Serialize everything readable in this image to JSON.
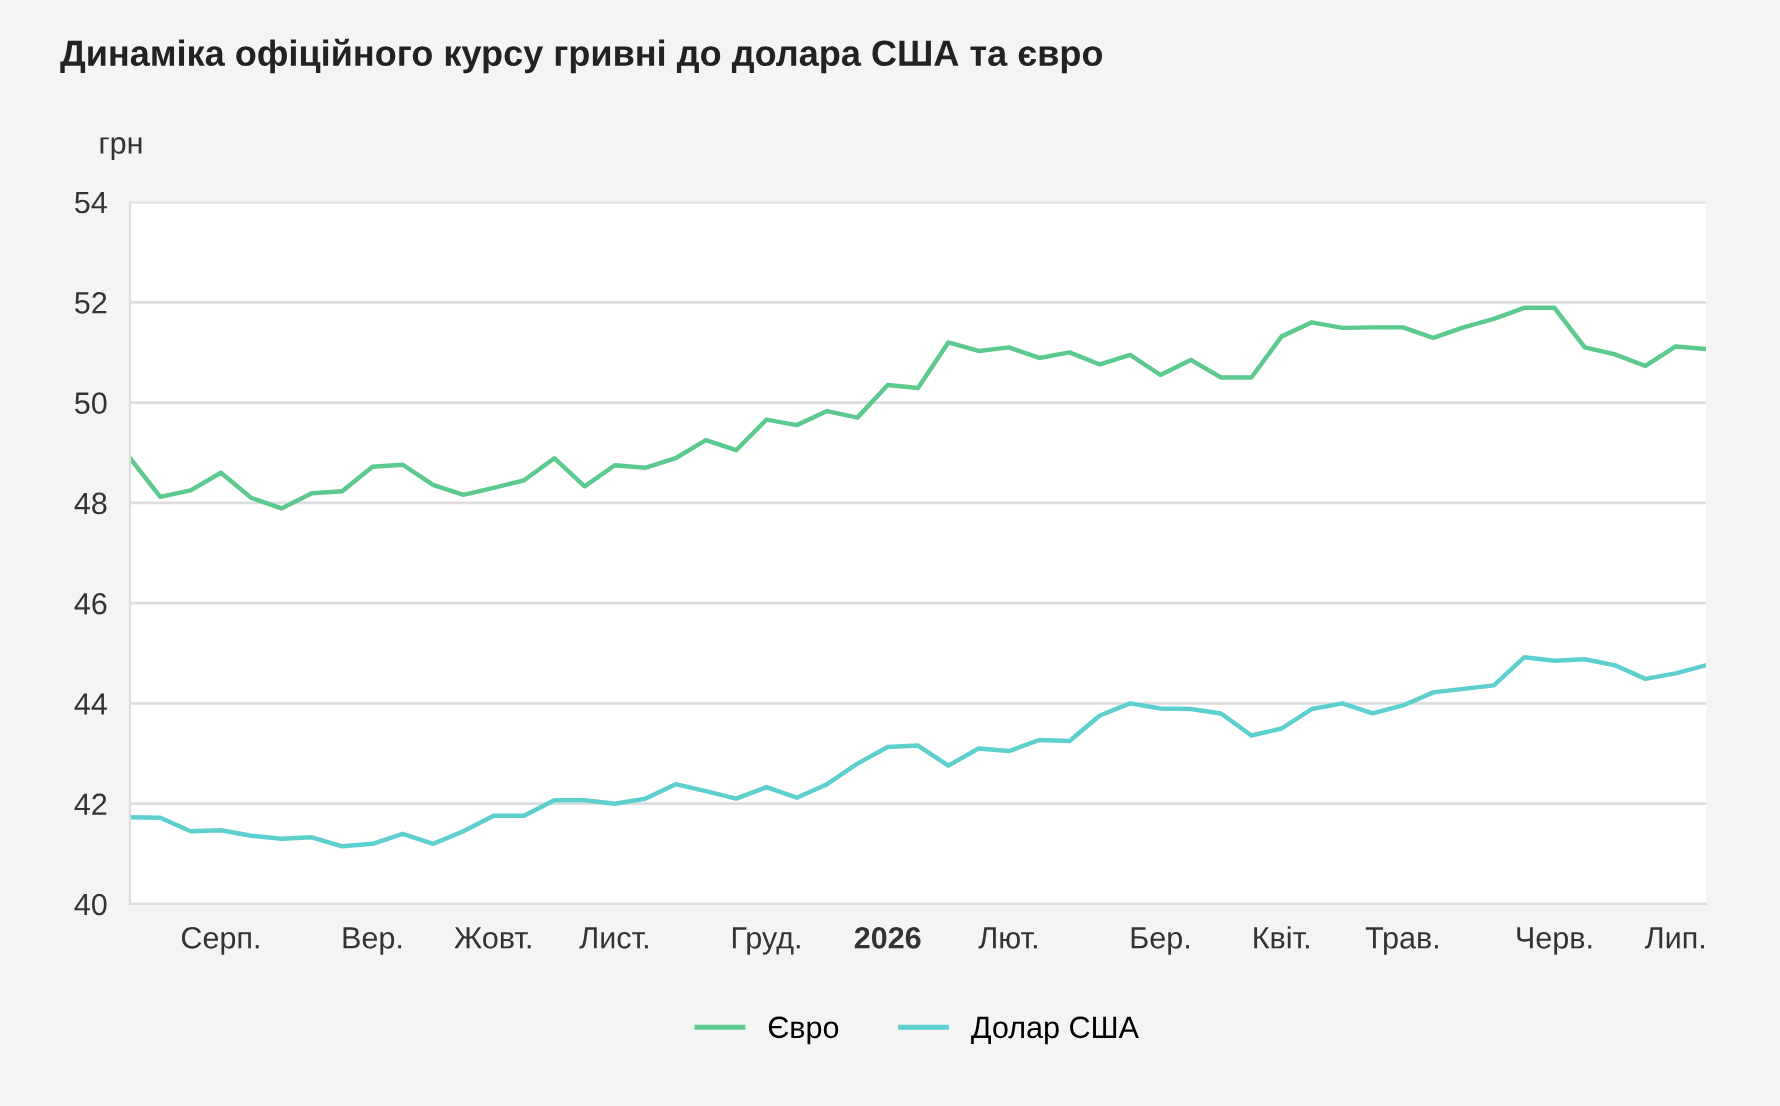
{
  "chart_data": {
    "type": "line",
    "title": "Динаміка офіційного курсу гривні до долара США та євро",
    "ylabel": "грн",
    "ylim": [
      40,
      54
    ],
    "yticks": [
      40,
      42,
      44,
      46,
      48,
      50,
      52,
      54
    ],
    "categories": [
      null,
      null,
      null,
      "Серп.",
      null,
      null,
      null,
      null,
      "Вер.",
      null,
      null,
      null,
      "Жовт.",
      null,
      null,
      null,
      "Лист.",
      null,
      null,
      null,
      null,
      "Груд.",
      null,
      null,
      null,
      "2026",
      null,
      null,
      null,
      "Лют.",
      null,
      null,
      null,
      null,
      "Бер.",
      null,
      null,
      null,
      "Квіт.",
      null,
      null,
      null,
      "Трав.",
      null,
      null,
      null,
      null,
      "Черв.",
      null,
      null,
      null,
      "Лип.",
      null
    ],
    "grid": "y",
    "legend": "bottom",
    "marker": "none",
    "line_style": "solid",
    "series": [
      {
        "name": "Євро",
        "color": "#5cc98f",
        "values": [
          48.89,
          48.12,
          48.25,
          48.6,
          48.1,
          47.89,
          48.19,
          48.23,
          48.72,
          48.76,
          48.36,
          48.16,
          48.3,
          48.45,
          48.89,
          48.33,
          48.75,
          48.7,
          48.89,
          49.25,
          49.05,
          49.66,
          49.55,
          49.83,
          49.7,
          50.35,
          50.29,
          51.2,
          51.03,
          51.1,
          50.89,
          51.0,
          50.76,
          50.95,
          50.55,
          50.85,
          50.5,
          50.5,
          51.32,
          51.6,
          51.49,
          51.5,
          51.5,
          51.29,
          51.5,
          51.67,
          51.89,
          51.89,
          51.1,
          50.96,
          50.73,
          51.12,
          51.07
        ]
      },
      {
        "name": "Долар США",
        "color": "#5ecfcf",
        "values": [
          41.73,
          41.72,
          41.45,
          41.47,
          41.36,
          41.3,
          41.33,
          41.15,
          41.2,
          41.4,
          41.2,
          41.45,
          41.76,
          41.76,
          42.07,
          42.07,
          42.0,
          42.1,
          42.39,
          42.25,
          42.1,
          42.33,
          42.12,
          42.39,
          42.8,
          43.13,
          43.16,
          42.76,
          43.1,
          43.05,
          43.27,
          43.25,
          43.76,
          44.0,
          43.9,
          43.89,
          43.8,
          43.36,
          43.5,
          43.89,
          44.0,
          43.8,
          43.96,
          44.22,
          44.29,
          44.36,
          44.92,
          44.85,
          44.88,
          44.76,
          44.49,
          44.6,
          44.76
        ]
      }
    ]
  }
}
